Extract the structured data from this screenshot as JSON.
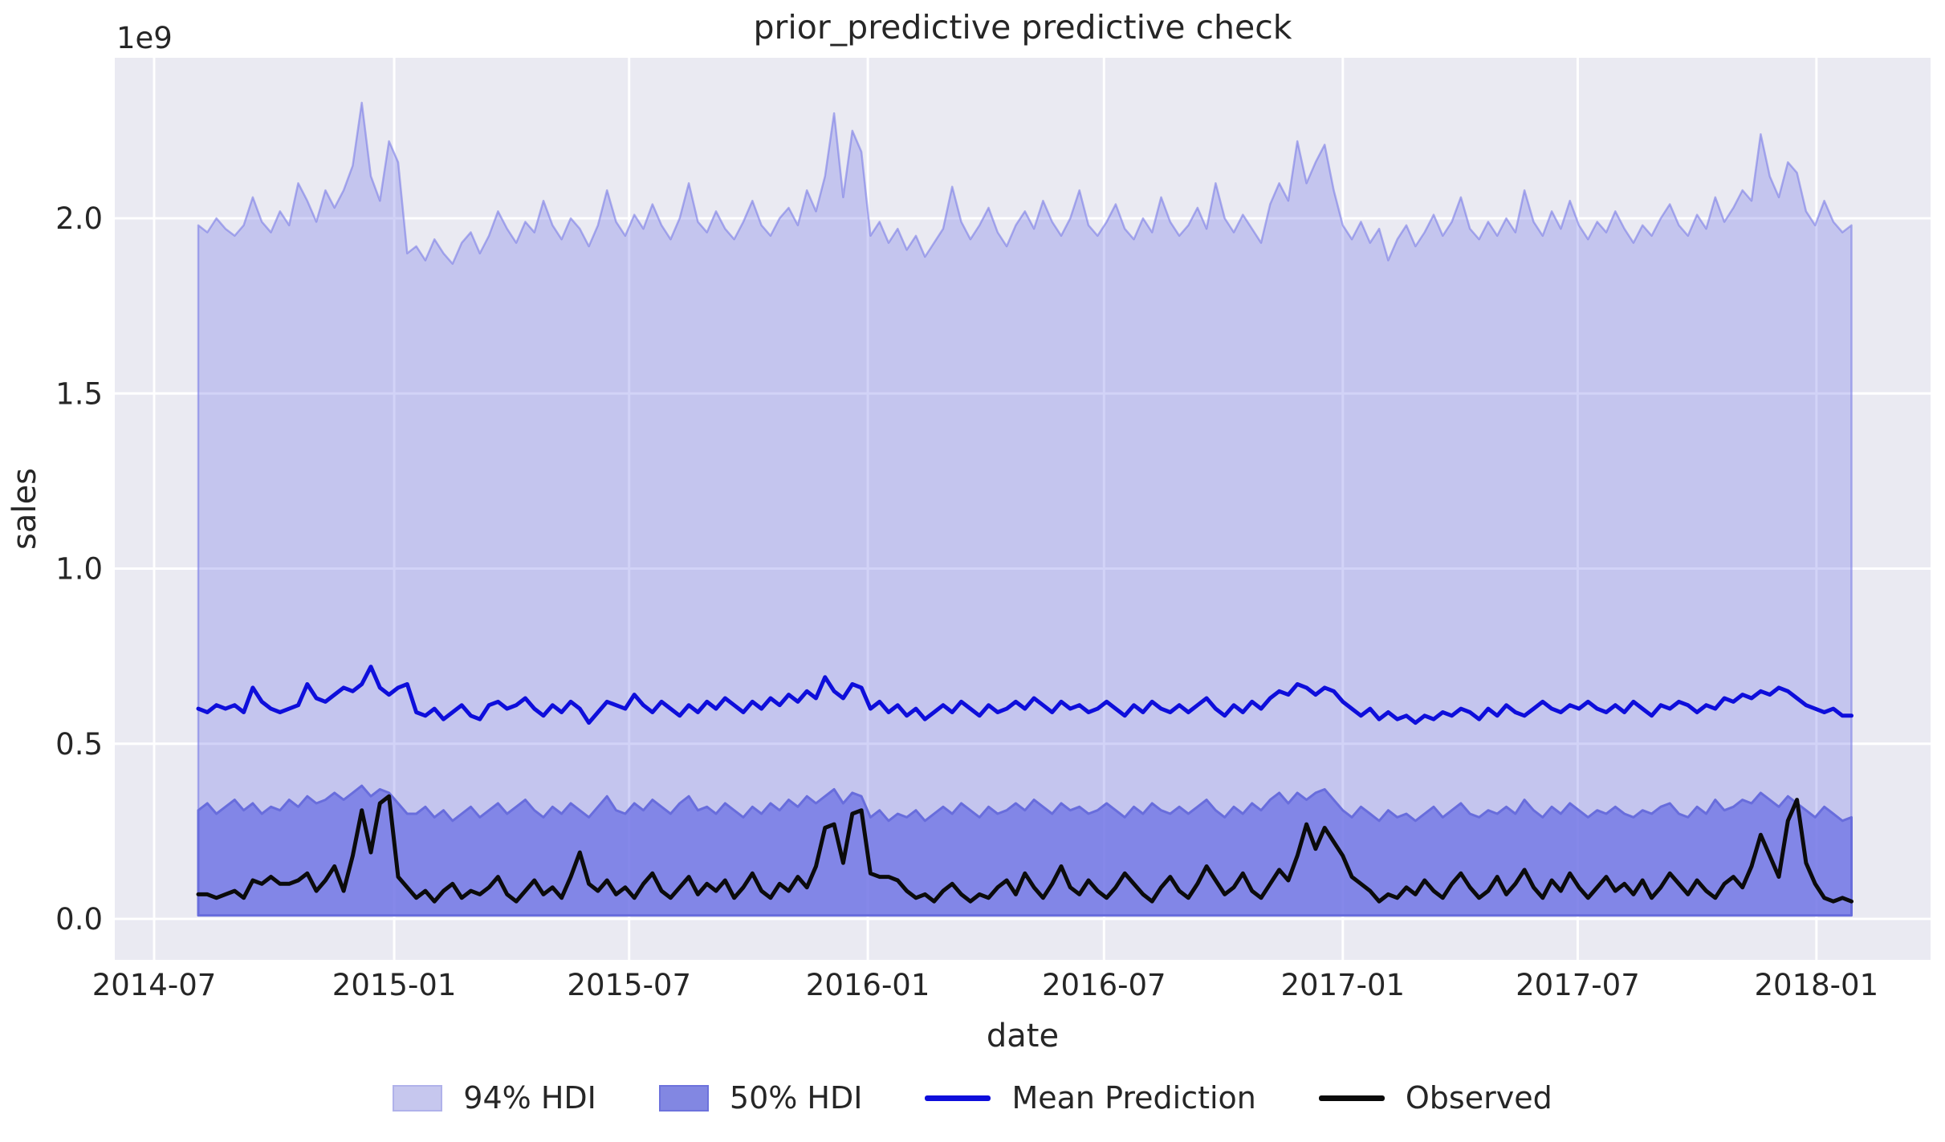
{
  "figure": {
    "title": "prior_predictive predictive check",
    "xlabel": "date",
    "ylabel": "sales",
    "y_offset_text": "1e9"
  },
  "colors": {
    "figure_bg": "#ffffff",
    "plot_bg": "#eaeaf2",
    "grid": "#ffffff",
    "hdi_base": "rgb(114,117,229)",
    "hdi94_edge": "rgba(114,117,229,0.55)",
    "hdi50_edge": "rgb(104,109,220)",
    "mean_line": "#0e0edb",
    "observed_line": "#0b0b0b",
    "text": "#262626",
    "legend_swatch_94": "#c6c7ee",
    "legend_swatch_50": "#8287e2"
  },
  "chart_data": {
    "type": "area",
    "subtype": "HDI bands + lines (prior predictive check)",
    "title": "prior_predictive predictive check",
    "xlabel": "date",
    "ylabel": "sales",
    "y_offset_text": "1e9",
    "unit": "sales in units of 1e9",
    "grid": true,
    "legend_position": "lower center outside plot",
    "x_start_date": "2014-08-03",
    "x_step_days": 7,
    "n_points": 183,
    "ylim": [
      -0.117,
      2.458
    ],
    "yticks": [
      {
        "label": "0.0",
        "value": 0.0
      },
      {
        "label": "0.5",
        "value": 0.5
      },
      {
        "label": "1.0",
        "value": 1.0
      },
      {
        "label": "1.5",
        "value": 1.5
      },
      {
        "label": "2.0",
        "value": 2.0
      }
    ],
    "xticks": [
      {
        "label": "2014-07",
        "week": -4.86
      },
      {
        "label": "2015-01",
        "week": 21.57
      },
      {
        "label": "2015-07",
        "week": 47.43
      },
      {
        "label": "2016-01",
        "week": 73.71
      },
      {
        "label": "2016-07",
        "week": 99.71
      },
      {
        "label": "2017-01",
        "week": 126.0
      },
      {
        "label": "2017-07",
        "week": 151.86
      },
      {
        "label": "2018-01",
        "week": 178.14
      }
    ],
    "series": [
      {
        "name": "94% HDI",
        "kind": "band",
        "low": 0.01,
        "fill_opacity": 0.32,
        "values": [
          1.98,
          1.96,
          2.0,
          1.97,
          1.95,
          1.98,
          2.06,
          1.99,
          1.96,
          2.02,
          1.98,
          2.1,
          2.05,
          1.99,
          2.08,
          2.03,
          2.08,
          2.15,
          2.33,
          2.12,
          2.05,
          2.22,
          2.16,
          1.9,
          1.92,
          1.88,
          1.94,
          1.9,
          1.87,
          1.93,
          1.96,
          1.9,
          1.95,
          2.02,
          1.97,
          1.93,
          1.99,
          1.96,
          2.05,
          1.98,
          1.94,
          2.0,
          1.97,
          1.92,
          1.98,
          2.08,
          1.99,
          1.95,
          2.01,
          1.97,
          2.04,
          1.98,
          1.94,
          2.0,
          2.1,
          1.99,
          1.96,
          2.02,
          1.97,
          1.94,
          1.99,
          2.05,
          1.98,
          1.95,
          2.0,
          2.03,
          1.98,
          2.08,
          2.02,
          2.12,
          2.3,
          2.06,
          2.25,
          2.19,
          1.95,
          1.99,
          1.93,
          1.97,
          1.91,
          1.95,
          1.89,
          1.93,
          1.97,
          2.09,
          1.99,
          1.94,
          1.98,
          2.03,
          1.96,
          1.92,
          1.98,
          2.02,
          1.97,
          2.05,
          1.99,
          1.95,
          2.0,
          2.08,
          1.98,
          1.95,
          1.99,
          2.04,
          1.97,
          1.94,
          2.0,
          1.96,
          2.06,
          1.99,
          1.95,
          1.98,
          2.03,
          1.97,
          2.1,
          2.0,
          1.96,
          2.01,
          1.97,
          1.93,
          2.04,
          2.1,
          2.05,
          2.22,
          2.1,
          2.16,
          2.21,
          2.08,
          1.98,
          1.94,
          1.99,
          1.93,
          1.97,
          1.88,
          1.94,
          1.98,
          1.92,
          1.96,
          2.01,
          1.95,
          1.99,
          2.06,
          1.97,
          1.94,
          1.99,
          1.95,
          2.0,
          1.96,
          2.08,
          1.99,
          1.95,
          2.02,
          1.97,
          2.05,
          1.98,
          1.94,
          1.99,
          1.96,
          2.02,
          1.97,
          1.93,
          1.98,
          1.95,
          2.0,
          2.04,
          1.98,
          1.95,
          2.01,
          1.97,
          2.06,
          1.99,
          2.03,
          2.08,
          2.05,
          2.24,
          2.12,
          2.06,
          2.16,
          2.13,
          2.02,
          1.98,
          2.05,
          1.99,
          1.96,
          1.98
        ]
      },
      {
        "name": "50% HDI",
        "kind": "band",
        "low": 0.01,
        "fill_opacity": 0.8,
        "values": [
          0.31,
          0.33,
          0.3,
          0.32,
          0.34,
          0.31,
          0.33,
          0.3,
          0.32,
          0.31,
          0.34,
          0.32,
          0.35,
          0.33,
          0.34,
          0.36,
          0.34,
          0.36,
          0.38,
          0.35,
          0.37,
          0.36,
          0.33,
          0.3,
          0.3,
          0.32,
          0.29,
          0.31,
          0.28,
          0.3,
          0.32,
          0.29,
          0.31,
          0.33,
          0.3,
          0.32,
          0.34,
          0.31,
          0.29,
          0.32,
          0.3,
          0.33,
          0.31,
          0.29,
          0.32,
          0.35,
          0.31,
          0.3,
          0.33,
          0.31,
          0.34,
          0.32,
          0.3,
          0.33,
          0.35,
          0.31,
          0.32,
          0.3,
          0.33,
          0.31,
          0.29,
          0.32,
          0.3,
          0.33,
          0.31,
          0.34,
          0.32,
          0.35,
          0.33,
          0.35,
          0.37,
          0.33,
          0.36,
          0.35,
          0.29,
          0.31,
          0.28,
          0.3,
          0.29,
          0.31,
          0.28,
          0.3,
          0.32,
          0.3,
          0.33,
          0.31,
          0.29,
          0.32,
          0.3,
          0.31,
          0.33,
          0.31,
          0.34,
          0.32,
          0.3,
          0.33,
          0.31,
          0.32,
          0.3,
          0.31,
          0.33,
          0.31,
          0.29,
          0.32,
          0.3,
          0.33,
          0.31,
          0.3,
          0.32,
          0.3,
          0.32,
          0.34,
          0.31,
          0.29,
          0.32,
          0.3,
          0.33,
          0.31,
          0.34,
          0.36,
          0.33,
          0.36,
          0.34,
          0.36,
          0.37,
          0.34,
          0.31,
          0.29,
          0.32,
          0.3,
          0.28,
          0.31,
          0.29,
          0.3,
          0.28,
          0.3,
          0.32,
          0.29,
          0.31,
          0.33,
          0.3,
          0.29,
          0.31,
          0.3,
          0.32,
          0.3,
          0.34,
          0.31,
          0.29,
          0.32,
          0.3,
          0.33,
          0.31,
          0.29,
          0.31,
          0.3,
          0.32,
          0.3,
          0.29,
          0.31,
          0.3,
          0.32,
          0.33,
          0.3,
          0.29,
          0.32,
          0.3,
          0.34,
          0.31,
          0.32,
          0.34,
          0.33,
          0.36,
          0.34,
          0.32,
          0.35,
          0.33,
          0.31,
          0.29,
          0.32,
          0.3,
          0.28,
          0.29
        ]
      },
      {
        "name": "Mean Prediction",
        "kind": "line",
        "values": [
          0.6,
          0.59,
          0.61,
          0.6,
          0.61,
          0.59,
          0.66,
          0.62,
          0.6,
          0.59,
          0.6,
          0.61,
          0.67,
          0.63,
          0.62,
          0.64,
          0.66,
          0.65,
          0.67,
          0.72,
          0.66,
          0.64,
          0.66,
          0.67,
          0.59,
          0.58,
          0.6,
          0.57,
          0.59,
          0.61,
          0.58,
          0.57,
          0.61,
          0.62,
          0.6,
          0.61,
          0.63,
          0.6,
          0.58,
          0.61,
          0.59,
          0.62,
          0.6,
          0.56,
          0.59,
          0.62,
          0.61,
          0.6,
          0.64,
          0.61,
          0.59,
          0.62,
          0.6,
          0.58,
          0.61,
          0.59,
          0.62,
          0.6,
          0.63,
          0.61,
          0.59,
          0.62,
          0.6,
          0.63,
          0.61,
          0.64,
          0.62,
          0.65,
          0.63,
          0.69,
          0.65,
          0.63,
          0.67,
          0.66,
          0.6,
          0.62,
          0.59,
          0.61,
          0.58,
          0.6,
          0.57,
          0.59,
          0.61,
          0.59,
          0.62,
          0.6,
          0.58,
          0.61,
          0.59,
          0.6,
          0.62,
          0.6,
          0.63,
          0.61,
          0.59,
          0.62,
          0.6,
          0.61,
          0.59,
          0.6,
          0.62,
          0.6,
          0.58,
          0.61,
          0.59,
          0.62,
          0.6,
          0.59,
          0.61,
          0.59,
          0.61,
          0.63,
          0.6,
          0.58,
          0.61,
          0.59,
          0.62,
          0.6,
          0.63,
          0.65,
          0.64,
          0.67,
          0.66,
          0.64,
          0.66,
          0.65,
          0.62,
          0.6,
          0.58,
          0.6,
          0.57,
          0.59,
          0.57,
          0.58,
          0.56,
          0.58,
          0.57,
          0.59,
          0.58,
          0.6,
          0.59,
          0.57,
          0.6,
          0.58,
          0.61,
          0.59,
          0.58,
          0.6,
          0.62,
          0.6,
          0.59,
          0.61,
          0.6,
          0.62,
          0.6,
          0.59,
          0.61,
          0.59,
          0.62,
          0.6,
          0.58,
          0.61,
          0.6,
          0.62,
          0.61,
          0.59,
          0.61,
          0.6,
          0.63,
          0.62,
          0.64,
          0.63,
          0.65,
          0.64,
          0.66,
          0.65,
          0.63,
          0.61,
          0.6,
          0.59,
          0.6,
          0.58,
          0.58
        ]
      },
      {
        "name": "Observed",
        "kind": "line",
        "values": [
          0.07,
          0.07,
          0.06,
          0.07,
          0.08,
          0.06,
          0.11,
          0.1,
          0.12,
          0.1,
          0.1,
          0.11,
          0.13,
          0.08,
          0.11,
          0.15,
          0.08,
          0.18,
          0.31,
          0.19,
          0.33,
          0.35,
          0.12,
          0.09,
          0.06,
          0.08,
          0.05,
          0.08,
          0.1,
          0.06,
          0.08,
          0.07,
          0.09,
          0.12,
          0.07,
          0.05,
          0.08,
          0.11,
          0.07,
          0.09,
          0.06,
          0.12,
          0.19,
          0.1,
          0.08,
          0.11,
          0.07,
          0.09,
          0.06,
          0.1,
          0.13,
          0.08,
          0.06,
          0.09,
          0.12,
          0.07,
          0.1,
          0.08,
          0.11,
          0.06,
          0.09,
          0.13,
          0.08,
          0.06,
          0.1,
          0.08,
          0.12,
          0.09,
          0.15,
          0.26,
          0.27,
          0.16,
          0.3,
          0.31,
          0.13,
          0.12,
          0.12,
          0.11,
          0.08,
          0.06,
          0.07,
          0.05,
          0.08,
          0.1,
          0.07,
          0.05,
          0.07,
          0.06,
          0.09,
          0.11,
          0.07,
          0.13,
          0.09,
          0.06,
          0.1,
          0.15,
          0.09,
          0.07,
          0.11,
          0.08,
          0.06,
          0.09,
          0.13,
          0.1,
          0.07,
          0.05,
          0.09,
          0.12,
          0.08,
          0.06,
          0.1,
          0.15,
          0.11,
          0.07,
          0.09,
          0.13,
          0.08,
          0.06,
          0.1,
          0.14,
          0.11,
          0.18,
          0.27,
          0.2,
          0.26,
          0.22,
          0.18,
          0.12,
          0.1,
          0.08,
          0.05,
          0.07,
          0.06,
          0.09,
          0.07,
          0.11,
          0.08,
          0.06,
          0.1,
          0.13,
          0.09,
          0.06,
          0.08,
          0.12,
          0.07,
          0.1,
          0.14,
          0.09,
          0.06,
          0.11,
          0.08,
          0.13,
          0.09,
          0.06,
          0.09,
          0.12,
          0.08,
          0.1,
          0.07,
          0.11,
          0.06,
          0.09,
          0.13,
          0.1,
          0.07,
          0.11,
          0.08,
          0.06,
          0.1,
          0.12,
          0.09,
          0.15,
          0.24,
          0.18,
          0.12,
          0.28,
          0.34,
          0.16,
          0.1,
          0.06,
          0.05,
          0.06,
          0.05
        ]
      }
    ],
    "legend": [
      "94% HDI",
      "50% HDI",
      "Mean Prediction",
      "Observed"
    ]
  }
}
